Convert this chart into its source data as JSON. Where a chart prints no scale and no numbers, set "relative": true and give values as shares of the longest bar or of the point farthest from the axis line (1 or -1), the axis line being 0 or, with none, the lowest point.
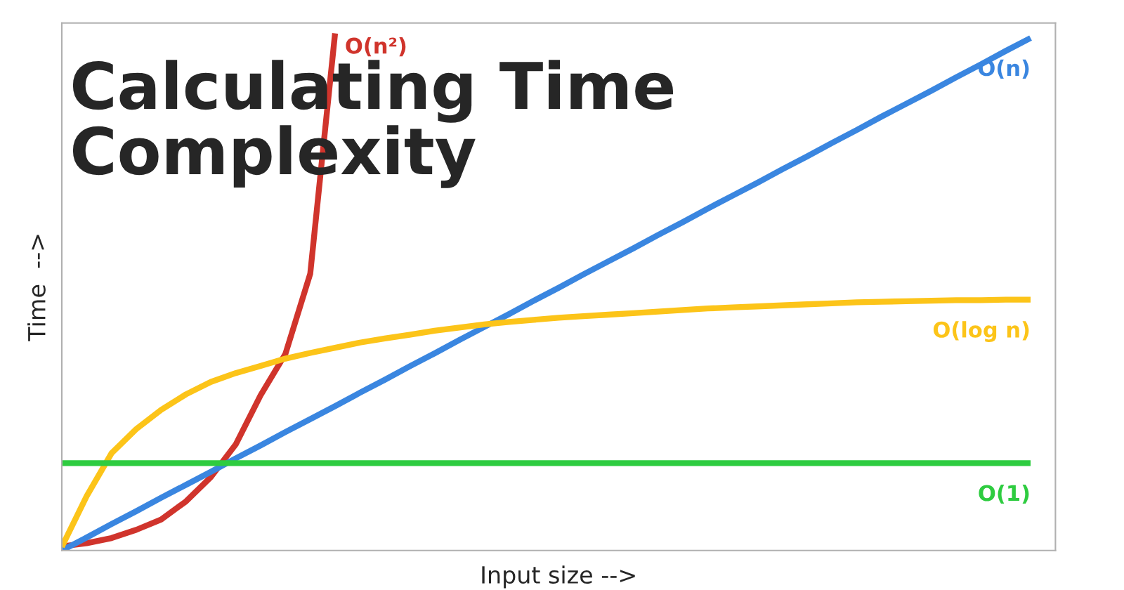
{
  "chart_data": {
    "type": "line",
    "title": "Calculating Time Complexity",
    "xlabel": "Input size -->",
    "ylabel": "Time  -->",
    "relative": true,
    "legend": false,
    "marker": "none",
    "line_style": "solid",
    "categories": [
      null,
      null,
      null,
      null,
      null,
      null,
      null,
      null,
      null,
      null,
      null,
      null,
      null,
      null,
      null,
      null,
      null,
      null,
      null,
      null,
      null,
      null,
      null,
      null,
      null,
      null,
      null,
      null,
      null,
      null,
      null,
      null,
      null,
      null,
      null,
      null,
      null,
      null,
      null,
      null
    ],
    "series": [
      {
        "name": "O(n²)",
        "color": "#d0342c",
        "values": [
          0.008,
          0.014,
          0.024,
          0.04,
          0.06,
          0.095,
          0.142,
          0.205,
          0.3,
          0.38,
          0.535,
          1,
          null,
          null,
          null,
          null,
          null,
          null,
          null,
          null,
          null,
          null,
          null,
          null,
          null,
          null,
          null,
          null,
          null,
          null,
          null,
          null,
          null,
          null,
          null,
          null,
          null,
          null,
          null,
          null
        ]
      },
      {
        "name": "O(n)",
        "color": "#3a86e0",
        "values": [
          0,
          0.025,
          0.051,
          0.076,
          0.102,
          0.127,
          0.152,
          0.178,
          0.203,
          0.229,
          0.254,
          0.279,
          0.305,
          0.33,
          0.356,
          0.381,
          0.407,
          0.432,
          0.457,
          0.483,
          0.508,
          0.534,
          0.559,
          0.584,
          0.61,
          0.635,
          0.661,
          0.686,
          0.711,
          0.737,
          0.762,
          0.788,
          0.813,
          0.839,
          0.864,
          0.889,
          0.915,
          0.94,
          0.966,
          0.991
        ]
      },
      {
        "name": "O(log n)",
        "color": "#fcc419",
        "values": [
          0.007,
          0.105,
          0.188,
          0.235,
          0.272,
          0.302,
          0.326,
          0.343,
          0.357,
          0.371,
          0.382,
          0.392,
          0.402,
          0.41,
          0.417,
          0.425,
          0.431,
          0.437,
          0.442,
          0.446,
          0.45,
          0.453,
          0.456,
          0.459,
          0.462,
          0.465,
          0.468,
          0.47,
          0.472,
          0.474,
          0.476,
          0.478,
          0.48,
          0.481,
          0.482,
          0.483,
          0.484,
          0.484,
          0.485,
          0.485
        ]
      },
      {
        "name": "O(1)",
        "color": "#2ecc40",
        "values": [
          0.169,
          0.169,
          0.169,
          0.169,
          0.169,
          0.169,
          0.169,
          0.169,
          0.169,
          0.169,
          0.169,
          0.169,
          0.169,
          0.169,
          0.169,
          0.169,
          0.169,
          0.169,
          0.169,
          0.169,
          0.169,
          0.169,
          0.169,
          0.169,
          0.169,
          0.169,
          0.169,
          0.169,
          0.169,
          0.169,
          0.169,
          0.169,
          0.169,
          0.169,
          0.169,
          0.169,
          0.169,
          0.169,
          0.169,
          0.169
        ]
      }
    ]
  }
}
